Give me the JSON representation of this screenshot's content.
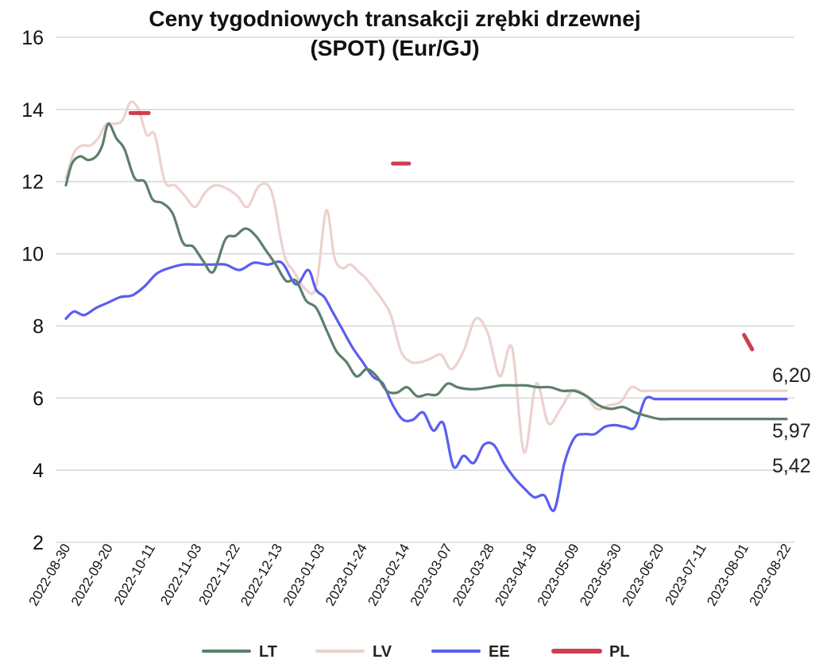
{
  "chart_data": {
    "type": "line",
    "title": [
      "Ceny tygodniowych transakcji zrębki drzewnej",
      "(SPOT) (Eur/GJ)"
    ],
    "ylim": [
      2,
      16
    ],
    "yticks": [
      "2",
      "4",
      "6",
      "8",
      "10",
      "12",
      "14",
      "16"
    ],
    "grid": true,
    "legend_position": "bottom",
    "x_ticks": [
      "2022-08-30",
      "2022-09-20",
      "2022-10-11",
      "2022-11-03",
      "2022-11-22",
      "2022-12-13",
      "2023-01-03",
      "2023-01-24",
      "2023-02-14",
      "2023-03-07",
      "2023-03-28",
      "2023-04-18",
      "2023-05-09",
      "2023-05-30",
      "2023-06-20",
      "2023-07-11",
      "2023-08-01",
      "2023-08-22"
    ],
    "x_range": [
      "2022-08-30",
      "2023-08-22"
    ],
    "series": [
      {
        "name": "LT",
        "color": "#5b806a",
        "x": [
          "2022-08-30",
          "2022-09-02",
          "2022-09-06",
          "2022-09-10",
          "2022-09-14",
          "2022-09-17",
          "2022-09-20",
          "2022-09-24",
          "2022-09-28",
          "2022-10-03",
          "2022-10-08",
          "2022-10-12",
          "2022-10-17",
          "2022-10-22",
          "2022-10-27",
          "2022-11-01",
          "2022-11-06",
          "2022-11-11",
          "2022-11-17",
          "2022-11-22",
          "2022-11-27",
          "2022-12-02",
          "2022-12-07",
          "2022-12-12",
          "2022-12-17",
          "2022-12-22",
          "2022-12-27",
          "2023-01-01",
          "2023-01-06",
          "2023-01-11",
          "2023-01-16",
          "2023-01-21",
          "2023-01-26",
          "2023-01-31",
          "2023-02-05",
          "2023-02-10",
          "2023-02-15",
          "2023-02-20",
          "2023-02-25",
          "2023-03-02",
          "2023-03-07",
          "2023-03-12",
          "2023-03-17",
          "2023-03-22",
          "2023-03-28",
          "2023-04-03",
          "2023-04-09",
          "2023-04-15",
          "2023-04-21",
          "2023-04-27",
          "2023-05-03",
          "2023-05-09",
          "2023-05-15",
          "2023-05-21",
          "2023-05-27",
          "2023-06-02",
          "2023-06-08",
          "2023-06-14",
          "2023-06-20",
          "2023-06-26",
          "2023-07-02",
          "2023-07-08",
          "2023-07-14",
          "2023-07-20",
          "2023-07-26",
          "2023-08-01",
          "2023-08-07",
          "2023-08-13",
          "2023-08-18",
          "2023-08-22"
        ],
        "values": [
          11.9,
          12.5,
          12.7,
          12.6,
          12.7,
          13.0,
          13.6,
          13.2,
          12.9,
          12.1,
          12.0,
          11.5,
          11.4,
          11.1,
          10.3,
          10.2,
          9.8,
          9.5,
          10.4,
          10.5,
          10.7,
          10.5,
          10.1,
          9.7,
          9.25,
          9.25,
          8.7,
          8.5,
          7.9,
          7.3,
          7.0,
          6.6,
          6.8,
          6.6,
          6.2,
          6.15,
          6.3,
          6.05,
          6.1,
          6.1,
          6.4,
          6.3,
          6.25,
          6.25,
          6.3,
          6.35,
          6.35,
          6.35,
          6.3,
          6.3,
          6.2,
          6.2,
          6.05,
          5.8,
          5.7,
          5.75,
          5.6,
          5.5,
          5.42,
          5.42,
          5.42,
          5.42,
          5.42,
          5.42,
          5.42,
          5.42,
          5.42,
          5.42,
          5.42,
          5.42
        ]
      },
      {
        "name": "LV",
        "color": "#ecd2cf",
        "x": [
          "2022-08-30",
          "2022-09-03",
          "2022-09-07",
          "2022-09-11",
          "2022-09-15",
          "2022-09-19",
          "2022-09-23",
          "2022-09-27",
          "2022-10-01",
          "2022-10-05",
          "2022-10-09",
          "2022-10-13",
          "2022-10-18",
          "2022-10-23",
          "2022-10-28",
          "2022-11-02",
          "2022-11-07",
          "2022-11-12",
          "2022-11-18",
          "2022-11-23",
          "2022-11-28",
          "2022-12-04",
          "2022-12-10",
          "2022-12-16",
          "2022-12-21",
          "2022-12-27",
          "2023-01-01",
          "2023-01-06",
          "2023-01-10",
          "2023-01-14",
          "2023-01-18",
          "2023-01-22",
          "2023-01-26",
          "2023-01-30",
          "2023-02-03",
          "2023-02-07",
          "2023-02-12",
          "2023-02-17",
          "2023-02-22",
          "2023-02-27",
          "2023-03-04",
          "2023-03-09",
          "2023-03-15",
          "2023-03-21",
          "2023-03-27",
          "2023-04-02",
          "2023-04-08",
          "2023-04-14",
          "2023-04-20",
          "2023-04-26",
          "2023-05-02",
          "2023-05-08",
          "2023-05-14",
          "2023-05-20",
          "2023-05-26",
          "2023-06-01",
          "2023-06-06",
          "2023-06-11",
          "2023-06-15",
          "2023-06-19",
          "2023-06-23",
          "2023-06-27",
          "2023-07-01",
          "2023-07-05",
          "2023-07-09",
          "2023-07-13",
          "2023-07-17",
          "2023-07-21",
          "2023-07-25",
          "2023-07-29",
          "2023-08-02",
          "2023-08-06",
          "2023-08-10",
          "2023-08-14",
          "2023-08-18",
          "2023-08-22"
        ],
        "values": [
          12.1,
          12.8,
          13.0,
          13.0,
          13.2,
          13.6,
          13.6,
          13.7,
          14.2,
          14.0,
          13.3,
          13.3,
          12.0,
          11.9,
          11.6,
          11.3,
          11.7,
          11.9,
          11.8,
          11.6,
          11.3,
          11.9,
          11.7,
          10.0,
          9.5,
          9.0,
          9.1,
          11.2,
          9.9,
          9.6,
          9.7,
          9.5,
          9.3,
          9.0,
          8.7,
          8.3,
          7.3,
          7.0,
          7.0,
          7.1,
          7.2,
          6.8,
          7.3,
          8.2,
          7.8,
          6.6,
          7.4,
          4.5,
          6.4,
          5.3,
          5.7,
          6.2,
          6.1,
          5.7,
          5.8,
          5.9,
          6.3,
          6.2,
          6.2,
          6.2,
          6.2,
          6.2,
          6.2,
          6.2,
          6.2,
          6.2,
          6.2,
          6.2,
          6.2,
          6.2,
          6.2,
          6.2,
          6.2,
          6.2,
          6.2,
          6.2
        ]
      },
      {
        "name": "EE",
        "color": "#5a5ef0",
        "x": [
          "2022-08-30",
          "2022-09-03",
          "2022-09-08",
          "2022-09-14",
          "2022-09-20",
          "2022-09-26",
          "2022-10-02",
          "2022-10-08",
          "2022-10-14",
          "2022-10-20",
          "2022-10-27",
          "2022-11-03",
          "2022-11-10",
          "2022-11-17",
          "2022-11-24",
          "2022-12-01",
          "2022-12-08",
          "2022-12-15",
          "2022-12-22",
          "2022-12-28",
          "2023-01-01",
          "2023-01-05",
          "2023-01-09",
          "2023-01-14",
          "2023-01-19",
          "2023-01-24",
          "2023-01-29",
          "2023-02-03",
          "2023-02-08",
          "2023-02-13",
          "2023-02-18",
          "2023-02-23",
          "2023-02-28",
          "2023-03-05",
          "2023-03-10",
          "2023-03-15",
          "2023-03-20",
          "2023-03-25",
          "2023-03-30",
          "2023-04-04",
          "2023-04-09",
          "2023-04-14",
          "2023-04-19",
          "2023-04-24",
          "2023-04-29",
          "2023-05-04",
          "2023-05-09",
          "2023-05-14",
          "2023-05-19",
          "2023-05-24",
          "2023-05-29",
          "2023-06-03",
          "2023-06-08",
          "2023-06-13",
          "2023-06-18",
          "2023-06-23",
          "2023-06-28",
          "2023-07-03",
          "2023-07-08",
          "2023-07-13",
          "2023-07-18",
          "2023-07-23",
          "2023-07-28",
          "2023-08-02",
          "2023-08-07",
          "2023-08-12",
          "2023-08-17",
          "2023-08-22"
        ],
        "values": [
          8.2,
          8.4,
          8.3,
          8.5,
          8.65,
          8.8,
          8.85,
          9.1,
          9.45,
          9.6,
          9.7,
          9.7,
          9.7,
          9.7,
          9.55,
          9.75,
          9.7,
          9.75,
          9.15,
          9.55,
          9.0,
          8.8,
          8.4,
          7.9,
          7.4,
          7.0,
          6.6,
          6.4,
          5.8,
          5.4,
          5.4,
          5.6,
          5.1,
          5.3,
          4.1,
          4.4,
          4.2,
          4.7,
          4.7,
          4.2,
          3.8,
          3.5,
          3.25,
          3.3,
          2.9,
          4.2,
          4.9,
          5.0,
          5.0,
          5.2,
          5.25,
          5.2,
          5.2,
          5.97,
          5.97,
          5.97,
          5.97,
          5.97,
          5.97,
          5.97,
          5.97,
          5.97,
          5.97,
          5.97,
          5.97,
          5.97,
          5.97,
          5.97
        ]
      },
      {
        "name": "PL",
        "color": "#cf3e4e",
        "segments": [
          {
            "x": [
              "2022-10-01",
              "2022-10-10"
            ],
            "values": [
              13.9,
              13.9
            ]
          },
          {
            "x": [
              "2023-02-08",
              "2023-02-16"
            ],
            "values": [
              12.5,
              12.5
            ]
          },
          {
            "x": [
              "2023-08-01",
              "2023-08-05"
            ],
            "values": [
              7.75,
              7.35
            ]
          }
        ]
      }
    ],
    "data_labels": [
      "6,20",
      "5,97",
      "5,42"
    ]
  }
}
